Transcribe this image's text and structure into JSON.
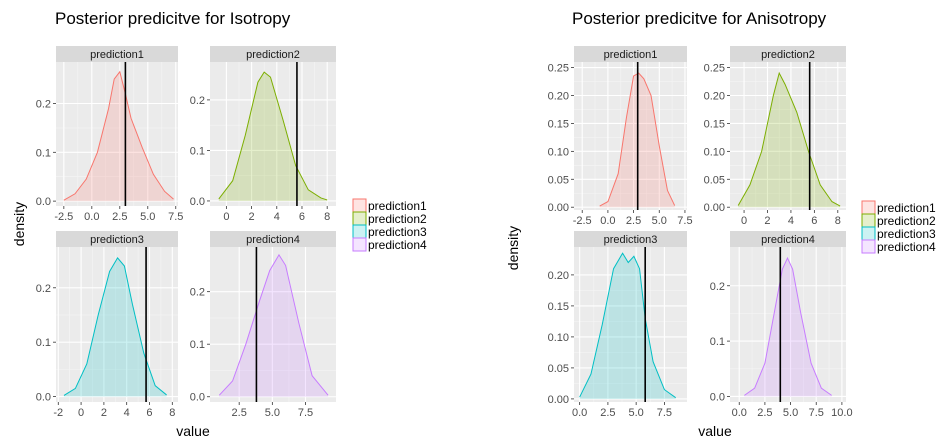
{
  "chart_data": [
    {
      "type": "area",
      "title": "Posterior predicitve for Isotropy",
      "xlabel": "value",
      "ylabel": "density",
      "grid": true,
      "legend_position": "right",
      "legend": [
        "prediction1",
        "prediction2",
        "prediction3",
        "prediction4"
      ],
      "colors": [
        "#F8766D",
        "#7CAE00",
        "#00BFC4",
        "#C77CFF"
      ],
      "panels": [
        {
          "strip": "prediction1",
          "xlim": [
            -3.2,
            7.7
          ],
          "ylim": [
            -0.01,
            0.285
          ],
          "xticks": [
            -2.5,
            0,
            2.5,
            5,
            7.5
          ],
          "xtick_labels": [
            "-2.5",
            "0.0",
            "2.5",
            "5.0",
            "7.5"
          ],
          "yticks": [
            0,
            0.1,
            0.2
          ],
          "ytick_labels": [
            "0.0",
            "0.1",
            "0.2"
          ],
          "vline": 3.0,
          "x": [
            -2.5,
            -1.5,
            -0.5,
            0.5,
            1.5,
            2.0,
            2.5,
            3.0,
            3.5,
            4.5,
            5.5,
            6.5,
            7.3
          ],
          "y": [
            0.002,
            0.015,
            0.045,
            0.1,
            0.19,
            0.25,
            0.265,
            0.22,
            0.17,
            0.11,
            0.055,
            0.02,
            0.004
          ]
        },
        {
          "strip": "prediction2",
          "xlim": [
            -1.3,
            8.7
          ],
          "ylim": [
            -0.01,
            0.275
          ],
          "xticks": [
            0,
            2,
            4,
            6,
            8
          ],
          "xtick_labels": [
            "0",
            "2",
            "4",
            "6",
            "8"
          ],
          "yticks": [
            0,
            0.1,
            0.2
          ],
          "ytick_labels": [
            "0.0",
            "0.1",
            "0.2"
          ],
          "vline": 5.6,
          "x": [
            -0.6,
            0.5,
            1.5,
            2.5,
            3.0,
            3.5,
            4.5,
            5.5,
            6.5,
            7.5,
            8.0
          ],
          "y": [
            0.004,
            0.04,
            0.13,
            0.235,
            0.255,
            0.245,
            0.16,
            0.07,
            0.022,
            0.006,
            0.002
          ]
        },
        {
          "strip": "prediction3",
          "xlim": [
            -2.2,
            8.5
          ],
          "ylim": [
            -0.01,
            0.275
          ],
          "xticks": [
            -2,
            0,
            2,
            4,
            6,
            8
          ],
          "xtick_labels": [
            "-2",
            "0",
            "2",
            "4",
            "6",
            "8"
          ],
          "yticks": [
            0,
            0.1,
            0.2
          ],
          "ytick_labels": [
            "0.0",
            "0.1",
            "0.2"
          ],
          "vline": 5.7,
          "x": [
            -1.5,
            -0.5,
            0.5,
            1.5,
            2.5,
            3.2,
            3.8,
            4.5,
            5.5,
            6.5,
            7.5
          ],
          "y": [
            0.002,
            0.015,
            0.06,
            0.15,
            0.23,
            0.255,
            0.24,
            0.17,
            0.08,
            0.02,
            0.003
          ]
        },
        {
          "strip": "prediction4",
          "xlim": [
            0.3,
            9.8
          ],
          "ylim": [
            -0.01,
            0.285
          ],
          "xticks": [
            2.5,
            5,
            7.5
          ],
          "xtick_labels": [
            "2.5",
            "5.0",
            "7.5"
          ],
          "yticks": [
            0,
            0.1,
            0.2
          ],
          "ytick_labels": [
            "0.0",
            "0.1",
            "0.2"
          ],
          "vline": 3.8,
          "x": [
            1.0,
            2.0,
            3.0,
            4.0,
            4.8,
            5.5,
            6.0,
            7.0,
            8.0,
            9.2
          ],
          "y": [
            0.003,
            0.03,
            0.1,
            0.18,
            0.24,
            0.27,
            0.25,
            0.14,
            0.04,
            0.003
          ]
        }
      ]
    },
    {
      "type": "area",
      "title": "Posterior predicitve for Anisotropy",
      "xlabel": "value",
      "ylabel": "density",
      "grid": true,
      "legend_position": "right",
      "legend": [
        "prediction1",
        "prediction2",
        "prediction3",
        "prediction4"
      ],
      "colors": [
        "#F8766D",
        "#7CAE00",
        "#00BFC4",
        "#C77CFF"
      ],
      "panels": [
        {
          "strip": "prediction1",
          "xlim": [
            -3.3,
            7.7
          ],
          "ylim": [
            -0.005,
            0.26
          ],
          "xticks": [
            -2.5,
            0,
            2.5,
            5,
            7.5
          ],
          "xtick_labels": [
            "-2.5",
            "0.0",
            "2.5",
            "5.0",
            "7.5"
          ],
          "yticks": [
            0,
            0.05,
            0.1,
            0.15,
            0.2,
            0.25
          ],
          "ytick_labels": [
            "0.00",
            "0.05",
            "0.10",
            "0.15",
            "0.20",
            "0.25"
          ],
          "vline": 2.9,
          "x": [
            -0.8,
            0.0,
            1.0,
            1.8,
            2.5,
            3.0,
            3.5,
            4.2,
            5.0,
            5.8,
            6.5
          ],
          "y": [
            0.002,
            0.01,
            0.06,
            0.16,
            0.235,
            0.24,
            0.23,
            0.2,
            0.11,
            0.03,
            0.003
          ]
        },
        {
          "strip": "prediction2",
          "xlim": [
            -1.2,
            8.7
          ],
          "ylim": [
            -0.005,
            0.26
          ],
          "xticks": [
            0,
            2,
            4,
            6,
            8
          ],
          "xtick_labels": [
            "0",
            "2",
            "4",
            "6",
            "8"
          ],
          "yticks": [
            0,
            0.05,
            0.1,
            0.15,
            0.2,
            0.25
          ],
          "ytick_labels": [
            "0.00",
            "0.05",
            "0.10",
            "0.15",
            "0.20",
            "0.25"
          ],
          "vline": 5.6,
          "x": [
            -0.5,
            0.5,
            1.5,
            2.5,
            3.0,
            3.5,
            4.5,
            5.5,
            6.5,
            7.5,
            8.2
          ],
          "y": [
            0.003,
            0.04,
            0.1,
            0.2,
            0.24,
            0.22,
            0.17,
            0.1,
            0.04,
            0.01,
            0.002
          ]
        },
        {
          "strip": "prediction3",
          "xlim": [
            -0.5,
            9.5
          ],
          "ylim": [
            -0.005,
            0.245
          ],
          "xticks": [
            0,
            2.5,
            5,
            7.5
          ],
          "xtick_labels": [
            "0.0",
            "2.5",
            "5.0",
            "7.5"
          ],
          "yticks": [
            0,
            0.05,
            0.1,
            0.15,
            0.2
          ],
          "ytick_labels": [
            "0.00",
            "0.05",
            "0.10",
            "0.15",
            "0.20"
          ],
          "vline": 5.8,
          "x": [
            0.0,
            1.0,
            2.0,
            3.0,
            3.8,
            4.3,
            4.8,
            5.3,
            5.8,
            6.5,
            7.5,
            8.5
          ],
          "y": [
            0.003,
            0.04,
            0.12,
            0.21,
            0.235,
            0.22,
            0.23,
            0.21,
            0.13,
            0.06,
            0.015,
            0.002
          ]
        },
        {
          "strip": "prediction4",
          "xlim": [
            -0.9,
            10.4
          ],
          "ylim": [
            -0.01,
            0.27
          ],
          "xticks": [
            0,
            2.5,
            5,
            7.5,
            10
          ],
          "xtick_labels": [
            "0.0",
            "2.5",
            "5.0",
            "7.5",
            "10.0"
          ],
          "yticks": [
            0,
            0.1,
            0.2
          ],
          "ytick_labels": [
            "0.0",
            "0.1",
            "0.2"
          ],
          "vline": 4.0,
          "x": [
            0.5,
            1.5,
            2.5,
            3.5,
            4.2,
            4.7,
            5.2,
            6.0,
            7.0,
            8.0,
            9.0
          ],
          "y": [
            0.002,
            0.015,
            0.06,
            0.16,
            0.23,
            0.25,
            0.23,
            0.15,
            0.06,
            0.015,
            0.002
          ]
        }
      ]
    }
  ]
}
